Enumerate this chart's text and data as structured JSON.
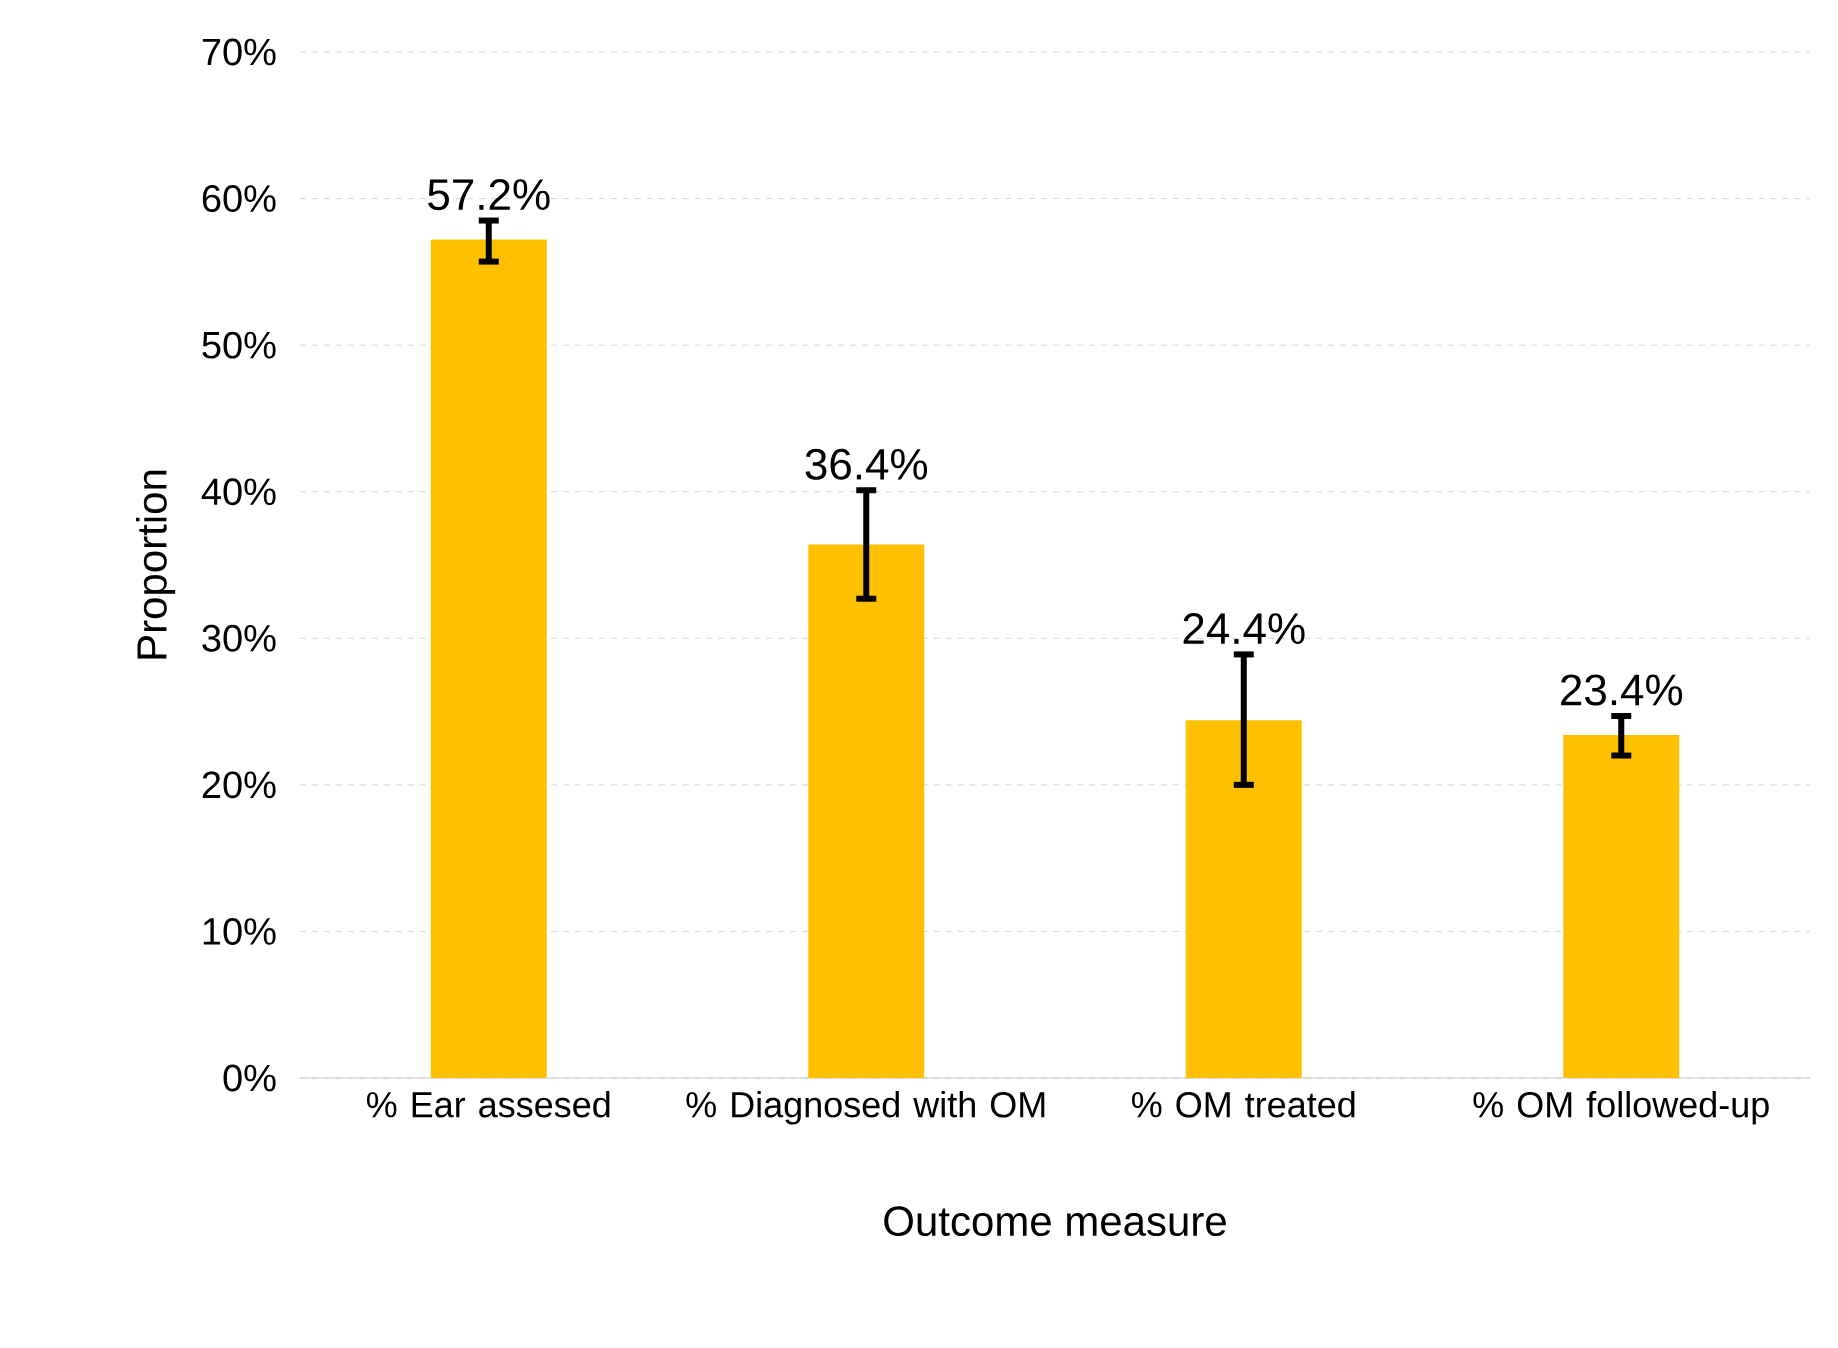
{
  "chart_data": {
    "type": "bar",
    "xlabel": "Outcome measure",
    "ylabel": "Proportion",
    "categories": [
      "% Ear assesed",
      "% Diagnosed with OM",
      "% OM treated",
      "% OM followed-up"
    ],
    "values": [
      57.2,
      36.4,
      24.4,
      23.4
    ],
    "color": "#ffc000",
    "errors": [
      [
        55.7,
        58.5
      ],
      [
        32.7,
        40.1
      ],
      [
        20.0,
        28.9
      ],
      [
        22.0,
        24.7
      ]
    ],
    "value_labels": [
      "57.2%",
      "36.4%",
      "24.4%",
      "23.4%"
    ],
    "ylim": [
      0,
      70
    ],
    "yticks": [
      {
        "value": 0,
        "label": "0%"
      },
      {
        "value": 10,
        "label": "10%"
      },
      {
        "value": 20,
        "label": "20%"
      },
      {
        "value": 30,
        "label": "30%"
      },
      {
        "value": 40,
        "label": "40%"
      },
      {
        "value": 50,
        "label": "50%"
      },
      {
        "value": 60,
        "label": "60%"
      },
      {
        "value": 70,
        "label": "70%"
      }
    ],
    "grid": "y"
  }
}
